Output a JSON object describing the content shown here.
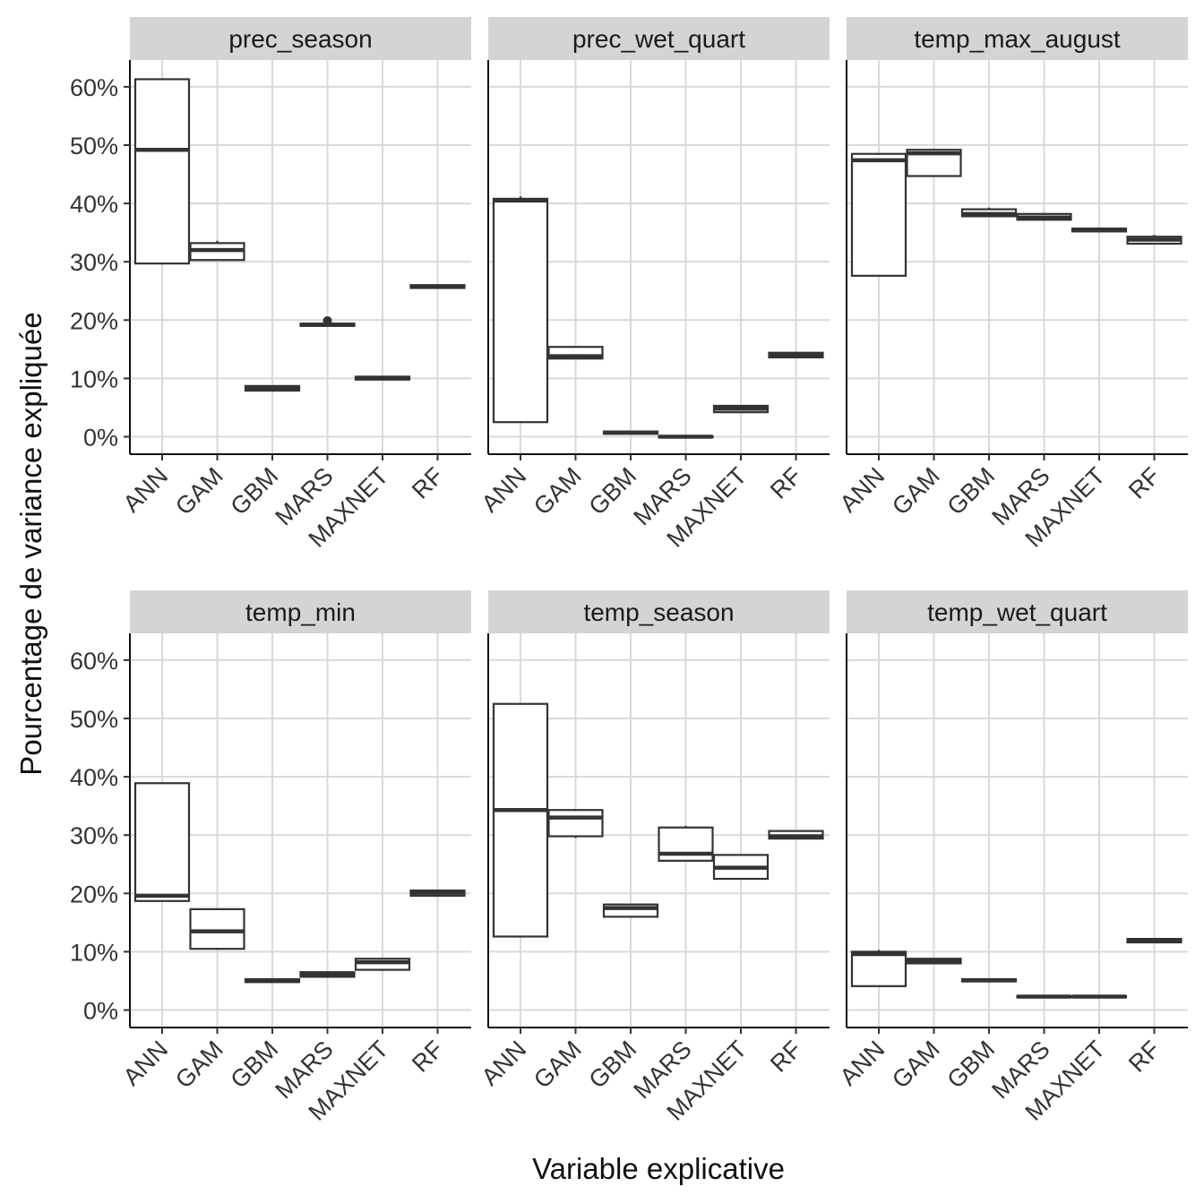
{
  "chart_data": {
    "type": "boxplot",
    "layout": "facet_wrap 2 rows x 3 columns",
    "xlabel": "Variable explicative",
    "ylabel": "Pourcentage de variance expliquée",
    "ylim": [
      -3,
      65
    ],
    "y_ticks": [
      0,
      10,
      20,
      30,
      40,
      50,
      60
    ],
    "y_tick_labels": [
      "0%",
      "10%",
      "20%",
      "30%",
      "40%",
      "50%",
      "60%"
    ],
    "categories": [
      "ANN",
      "GAM",
      "GBM",
      "MARS",
      "MAXNET",
      "RF"
    ],
    "panels": [
      {
        "title": "prec_season",
        "boxes": [
          {
            "category": "ANN",
            "min": 29.7,
            "q1": 29.7,
            "median": 49.2,
            "q3": 61.3,
            "max": 61.3,
            "outliers": []
          },
          {
            "category": "GAM",
            "min": 30.3,
            "q1": 30.3,
            "median": 32.0,
            "q3": 33.2,
            "max": 33.6,
            "outliers": []
          },
          {
            "category": "GBM",
            "min": 7.9,
            "q1": 7.9,
            "median": 8.3,
            "q3": 8.7,
            "max": 8.7,
            "outliers": []
          },
          {
            "category": "MARS",
            "min": 19.0,
            "q1": 19.0,
            "median": 19.2,
            "q3": 19.4,
            "max": 19.4,
            "outliers": [
              19.9
            ]
          },
          {
            "category": "MAXNET",
            "min": 9.8,
            "q1": 9.8,
            "median": 10.0,
            "q3": 10.3,
            "max": 10.3,
            "outliers": []
          },
          {
            "category": "RF",
            "min": 25.5,
            "q1": 25.5,
            "median": 25.7,
            "q3": 26.0,
            "max": 26.0,
            "outliers": []
          }
        ]
      },
      {
        "title": "prec_wet_quart",
        "boxes": [
          {
            "category": "ANN",
            "min": 2.5,
            "q1": 2.5,
            "median": 40.5,
            "q3": 40.8,
            "max": 41.2,
            "outliers": []
          },
          {
            "category": "GAM",
            "min": 13.4,
            "q1": 13.4,
            "median": 13.8,
            "q3": 15.4,
            "max": 15.4,
            "outliers": []
          },
          {
            "category": "GBM",
            "min": 0.5,
            "q1": 0.5,
            "median": 0.7,
            "q3": 0.9,
            "max": 0.9,
            "outliers": []
          },
          {
            "category": "MARS",
            "min": -0.1,
            "q1": -0.1,
            "median": 0.0,
            "q3": 0.1,
            "max": 0.1,
            "outliers": []
          },
          {
            "category": "MAXNET",
            "min": 4.2,
            "q1": 4.2,
            "median": 4.8,
            "q3": 5.3,
            "max": 5.3,
            "outliers": []
          },
          {
            "category": "RF",
            "min": 13.6,
            "q1": 13.6,
            "median": 14.0,
            "q3": 14.4,
            "max": 14.4,
            "outliers": []
          }
        ]
      },
      {
        "title": "temp_max_august",
        "boxes": [
          {
            "category": "ANN",
            "min": 27.6,
            "q1": 27.6,
            "median": 47.4,
            "q3": 48.5,
            "max": 48.5,
            "outliers": []
          },
          {
            "category": "GAM",
            "min": 44.7,
            "q1": 44.7,
            "median": 48.6,
            "q3": 49.2,
            "max": 49.2,
            "outliers": []
          },
          {
            "category": "GBM",
            "min": 37.8,
            "q1": 37.8,
            "median": 38.2,
            "q3": 39.0,
            "max": 39.3,
            "outliers": []
          },
          {
            "category": "MARS",
            "min": 37.2,
            "q1": 37.2,
            "median": 37.6,
            "q3": 38.2,
            "max": 38.4,
            "outliers": []
          },
          {
            "category": "MAXNET",
            "min": 35.2,
            "q1": 35.2,
            "median": 35.4,
            "q3": 35.7,
            "max": 35.7,
            "outliers": []
          },
          {
            "category": "RF",
            "min": 33.1,
            "q1": 33.1,
            "median": 33.8,
            "q3": 34.3,
            "max": 34.6,
            "outliers": []
          }
        ]
      },
      {
        "title": "temp_min",
        "boxes": [
          {
            "category": "ANN",
            "min": 18.7,
            "q1": 18.7,
            "median": 19.6,
            "q3": 38.9,
            "max": 38.9,
            "outliers": []
          },
          {
            "category": "GAM",
            "min": 10.5,
            "q1": 10.5,
            "median": 13.5,
            "q3": 17.3,
            "max": 17.3,
            "outliers": []
          },
          {
            "category": "GBM",
            "min": 4.8,
            "q1": 4.8,
            "median": 5.0,
            "q3": 5.3,
            "max": 5.3,
            "outliers": []
          },
          {
            "category": "MARS",
            "min": 5.7,
            "q1": 5.7,
            "median": 6.1,
            "q3": 6.5,
            "max": 6.5,
            "outliers": []
          },
          {
            "category": "MAXNET",
            "min": 6.9,
            "q1": 6.9,
            "median": 8.2,
            "q3": 8.8,
            "max": 8.8,
            "outliers": []
          },
          {
            "category": "RF",
            "min": 19.6,
            "q1": 19.6,
            "median": 20.1,
            "q3": 20.5,
            "max": 20.5,
            "outliers": []
          }
        ]
      },
      {
        "title": "temp_season",
        "boxes": [
          {
            "category": "ANN",
            "min": 12.6,
            "q1": 12.6,
            "median": 34.3,
            "q3": 52.5,
            "max": 52.5,
            "outliers": []
          },
          {
            "category": "GAM",
            "min": 29.5,
            "q1": 29.8,
            "median": 33.0,
            "q3": 34.3,
            "max": 34.3,
            "outliers": []
          },
          {
            "category": "GBM",
            "min": 16.0,
            "q1": 16.0,
            "median": 17.5,
            "q3": 18.1,
            "max": 18.1,
            "outliers": []
          },
          {
            "category": "MARS",
            "min": 25.6,
            "q1": 25.6,
            "median": 26.8,
            "q3": 31.3,
            "max": 31.6,
            "outliers": []
          },
          {
            "category": "MAXNET",
            "min": 22.5,
            "q1": 22.5,
            "median": 24.4,
            "q3": 26.6,
            "max": 26.6,
            "outliers": []
          },
          {
            "category": "RF",
            "min": 29.4,
            "q1": 29.4,
            "median": 29.8,
            "q3": 30.7,
            "max": 30.7,
            "outliers": []
          }
        ]
      },
      {
        "title": "temp_wet_quart",
        "boxes": [
          {
            "category": "ANN",
            "min": 4.1,
            "q1": 4.1,
            "median": 9.6,
            "q3": 10.0,
            "max": 10.3,
            "outliers": []
          },
          {
            "category": "GAM",
            "min": 8.0,
            "q1": 8.0,
            "median": 8.4,
            "q3": 8.8,
            "max": 8.8,
            "outliers": []
          },
          {
            "category": "GBM",
            "min": 4.9,
            "q1": 4.9,
            "median": 5.1,
            "q3": 5.3,
            "max": 5.3,
            "outliers": []
          },
          {
            "category": "MARS",
            "min": 2.2,
            "q1": 2.2,
            "median": 2.3,
            "q3": 2.4,
            "max": 2.4,
            "outliers": []
          },
          {
            "category": "MAXNET",
            "min": 2.2,
            "q1": 2.2,
            "median": 2.3,
            "q3": 2.4,
            "max": 2.4,
            "outliers": []
          },
          {
            "category": "RF",
            "min": 11.6,
            "q1": 11.6,
            "median": 11.9,
            "q3": 12.2,
            "max": 12.2,
            "outliers": []
          }
        ]
      }
    ]
  }
}
